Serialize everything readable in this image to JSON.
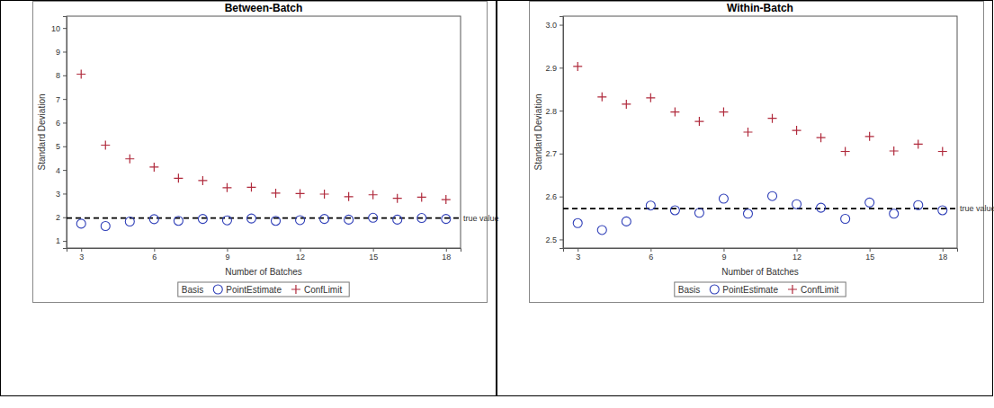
{
  "chart_data": [
    {
      "type": "scatter",
      "title": "Between-Batch",
      "x_label": "Number of Batches",
      "y_label": "Standard Deviation",
      "legend_title": "Basis",
      "legend": "bottom",
      "annotations": [
        {
          "y": 1.97,
          "text": "true value"
        }
      ],
      "x": [
        3,
        4,
        5,
        6,
        7,
        8,
        9,
        10,
        11,
        12,
        13,
        14,
        15,
        16,
        17,
        18
      ],
      "xlim": [
        2.4,
        18.6
      ],
      "xticks": [
        3,
        6,
        9,
        12,
        15,
        18
      ],
      "ylim": [
        0.7,
        10.5
      ],
      "yticks": [
        1,
        2,
        3,
        4,
        5,
        6,
        7,
        8,
        9,
        10
      ],
      "series": [
        {
          "name": "PointEstimate",
          "color": "#2f3fb8",
          "marker": "circle",
          "values": [
            1.73,
            1.63,
            1.82,
            1.92,
            1.85,
            1.93,
            1.87,
            1.95,
            1.85,
            1.88,
            1.93,
            1.9,
            1.98,
            1.9,
            1.97,
            1.93
          ]
        },
        {
          "name": "ConfLimit",
          "color": "#b02a3c",
          "marker": "plus",
          "values": [
            8.05,
            5.05,
            4.47,
            4.12,
            3.65,
            3.55,
            3.25,
            3.27,
            3.02,
            3.0,
            2.98,
            2.87,
            2.95,
            2.8,
            2.85,
            2.75
          ]
        }
      ]
    },
    {
      "type": "scatter",
      "title": "Within-Batch",
      "x_label": "Number of Batches",
      "y_label": "Standard Deviation",
      "legend_title": "Basis",
      "legend": "bottom",
      "annotations": [
        {
          "y": 2.572,
          "text": "true value"
        }
      ],
      "x": [
        3,
        4,
        5,
        6,
        7,
        8,
        9,
        10,
        11,
        12,
        13,
        14,
        15,
        16,
        17,
        18
      ],
      "xlim": [
        2.4,
        18.6
      ],
      "xticks": [
        3,
        6,
        9,
        12,
        15,
        18
      ],
      "ylim": [
        2.48,
        3.02
      ],
      "yticks": [
        2.5,
        2.6,
        2.7,
        2.8,
        2.9,
        {
          "value": 3,
          "label": "3.0"
        }
      ],
      "series": [
        {
          "name": "PointEstimate",
          "color": "#2f3fb8",
          "marker": "circle",
          "values": [
            2.538,
            2.522,
            2.542,
            2.579,
            2.568,
            2.562,
            2.595,
            2.56,
            2.601,
            2.582,
            2.574,
            2.548,
            2.586,
            2.56,
            2.58,
            2.568
          ]
        },
        {
          "name": "ConfLimit",
          "color": "#b02a3c",
          "marker": "plus",
          "values": [
            2.903,
            2.832,
            2.815,
            2.83,
            2.797,
            2.775,
            2.797,
            2.75,
            2.782,
            2.754,
            2.737,
            2.705,
            2.74,
            2.706,
            2.722,
            2.705
          ]
        }
      ]
    }
  ]
}
